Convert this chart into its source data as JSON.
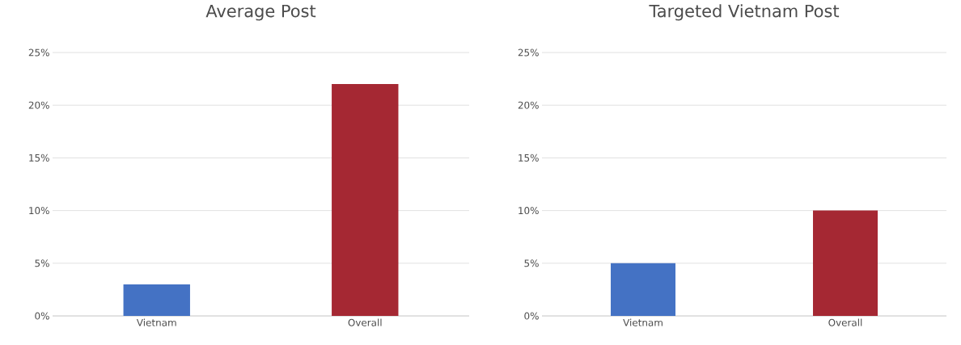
{
  "chart_data": [
    {
      "type": "bar",
      "title": "Average Post",
      "categories": [
        "Vietnam",
        "Overall"
      ],
      "values": [
        3,
        22
      ],
      "colors": [
        "#4472c4",
        "#a52833"
      ],
      "ylim": [
        0,
        25
      ],
      "yticks": [
        {
          "value": 0,
          "label": "0%"
        },
        {
          "value": 5,
          "label": "5%"
        },
        {
          "value": 10,
          "label": "10%"
        },
        {
          "value": 15,
          "label": "15%"
        },
        {
          "value": 20,
          "label": "20%"
        },
        {
          "value": 25,
          "label": "25%"
        }
      ],
      "grid": "y"
    },
    {
      "type": "bar",
      "title": "Targeted Vietnam Post",
      "categories": [
        "Vietnam",
        "Overall"
      ],
      "values": [
        5,
        10
      ],
      "colors": [
        "#4472c4",
        "#a52833"
      ],
      "ylim": [
        0,
        25
      ],
      "yticks": [
        {
          "value": 0,
          "label": "0%"
        },
        {
          "value": 5,
          "label": "5%"
        },
        {
          "value": 10,
          "label": "10%"
        },
        {
          "value": 15,
          "label": "15%"
        },
        {
          "value": 20,
          "label": "20%"
        },
        {
          "value": 25,
          "label": "25%"
        }
      ],
      "grid": "y"
    }
  ]
}
